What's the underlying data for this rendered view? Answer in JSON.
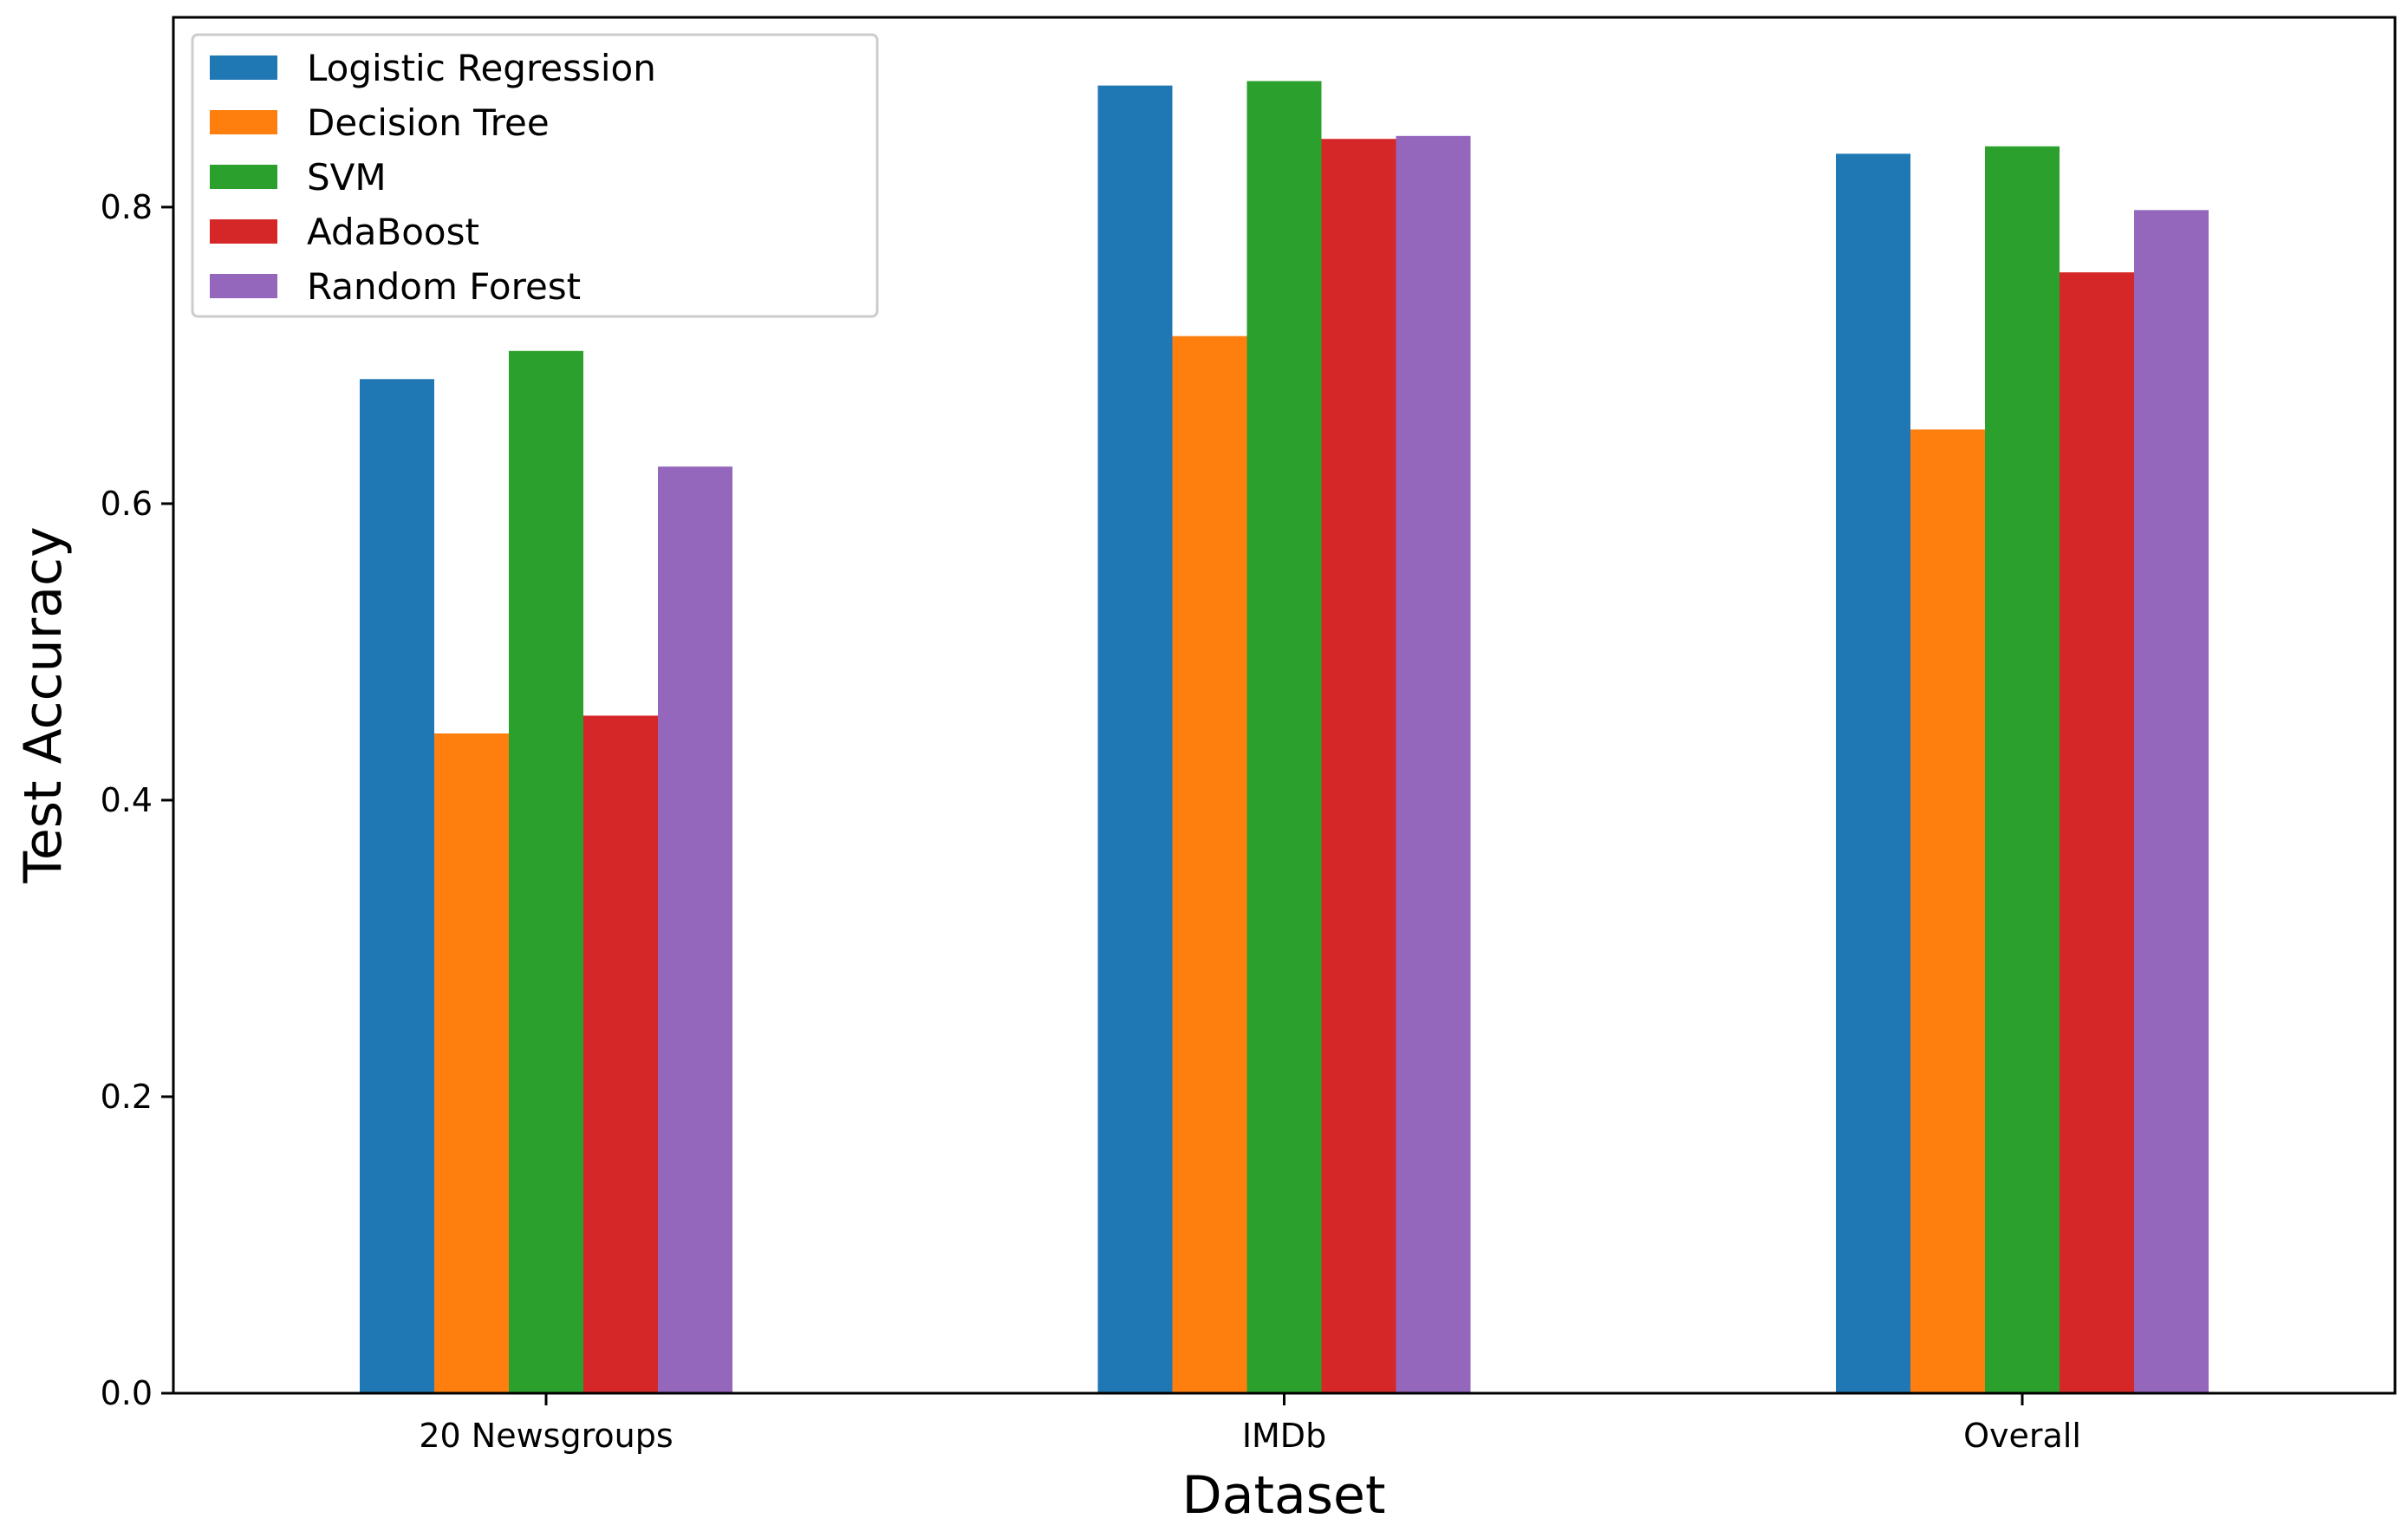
{
  "chart_data": {
    "type": "bar",
    "title": "",
    "xlabel": "Dataset",
    "ylabel": "Test Accuracy",
    "categories": [
      "20 Newsgroups",
      "IMDb",
      "Overall"
    ],
    "series": [
      {
        "name": "Logistic Regression",
        "color": "#1f77b4",
        "values": [
          0.684,
          0.882,
          0.836
        ]
      },
      {
        "name": "Decision Tree",
        "color": "#ff7f0e",
        "values": [
          0.445,
          0.713,
          0.65
        ]
      },
      {
        "name": "SVM",
        "color": "#2ca02c",
        "values": [
          0.703,
          0.885,
          0.841
        ]
      },
      {
        "name": "AdaBoost",
        "color": "#d62728",
        "values": [
          0.457,
          0.846,
          0.756
        ]
      },
      {
        "name": "Random Forest",
        "color": "#9467bd",
        "values": [
          0.625,
          0.848,
          0.798
        ]
      }
    ],
    "ylim": [
      0,
      0.928
    ],
    "yticks": [
      0.0,
      0.2,
      0.4,
      0.6,
      0.8
    ],
    "ytick_labels": [
      "0.0",
      "0.2",
      "0.4",
      "0.6",
      "0.8"
    ],
    "legend_position": "top-left",
    "grid": false
  }
}
